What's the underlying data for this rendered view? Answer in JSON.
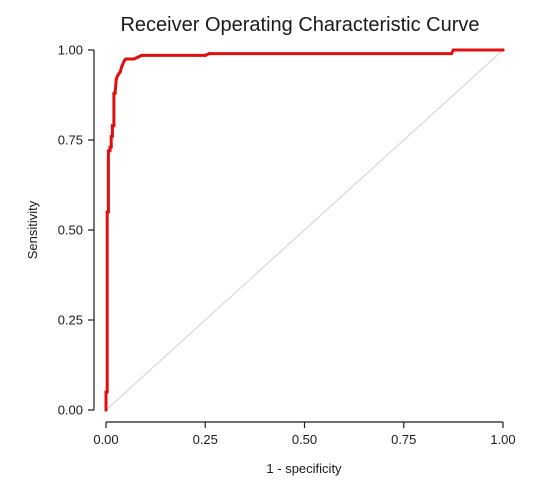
{
  "chart_data": {
    "type": "line",
    "title": "Receiver Operating Characteristic Curve",
    "xlabel": "1 - specificity",
    "ylabel": "Sensitivity",
    "xlim": [
      0,
      1
    ],
    "ylim": [
      0,
      1
    ],
    "xticks": [
      "0.00",
      "0.25",
      "0.50",
      "0.75",
      "1.00"
    ],
    "yticks": [
      "0.00",
      "0.25",
      "0.50",
      "0.75",
      "1.00"
    ],
    "grid": false,
    "reference_line": {
      "x": [
        0,
        1
      ],
      "y": [
        0,
        1
      ],
      "color": "#d0d0d0"
    },
    "series": [
      {
        "color": "#e01010",
        "x": [
          0.0,
          0.0,
          0.003,
          0.003,
          0.006,
          0.006,
          0.01,
          0.01,
          0.013,
          0.013,
          0.016,
          0.016,
          0.02,
          0.02,
          0.023,
          0.026,
          0.03,
          0.033,
          0.036,
          0.04,
          0.046,
          0.05,
          0.07,
          0.08,
          0.09,
          0.25,
          0.26,
          0.87,
          0.875,
          1.0
        ],
        "y": [
          0.0,
          0.05,
          0.05,
          0.55,
          0.55,
          0.72,
          0.72,
          0.73,
          0.73,
          0.76,
          0.76,
          0.79,
          0.79,
          0.88,
          0.88,
          0.92,
          0.93,
          0.935,
          0.94,
          0.955,
          0.97,
          0.975,
          0.975,
          0.98,
          0.985,
          0.985,
          0.99,
          0.99,
          1.0,
          1.0
        ]
      }
    ]
  }
}
